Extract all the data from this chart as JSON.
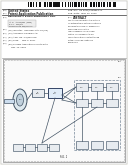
{
  "bg_color": "#f5f5f0",
  "page_color": "#ffffff",
  "text_dark": "#222222",
  "text_mid": "#444444",
  "text_light": "#666666",
  "line_color": "#555555",
  "box_fill": "#e8ecf0",
  "box_edge": "#556677",
  "diagram_bg": "#f0f0f8",
  "barcode_color": "#111111",
  "header_left1": "United States",
  "header_left2": "Patent Application Publication",
  "header_right1": "Pub. No.: US 2010/0049893 A1",
  "header_right2": "Pub. Date:  May 13, 2010",
  "title54": "(54)  DETUNING A RADIO-FREQUENCY COIL",
  "meta_lines": [
    "(75) Inventor:  John Doe, City, ST (US)",
    "(73) Assignee: SIEMENS AG",
    "(21) Appl. No.: 12/265,678",
    "(22) Filed:     Nov. 5, 2007",
    "(30) Foreign Application Priority Data",
    "     Nov. 14, 2008"
  ],
  "abstract_title": "ABSTRACT",
  "abstract_body": "The technology relates to a method for automatically determining tuning and simultaneously for dynamically overriding a connected radio-frequency coil in an MRI system. Coil components are connected in the coil so that tuning of the coil can be controlled dynamically.",
  "fig_label": "FIG. 1"
}
